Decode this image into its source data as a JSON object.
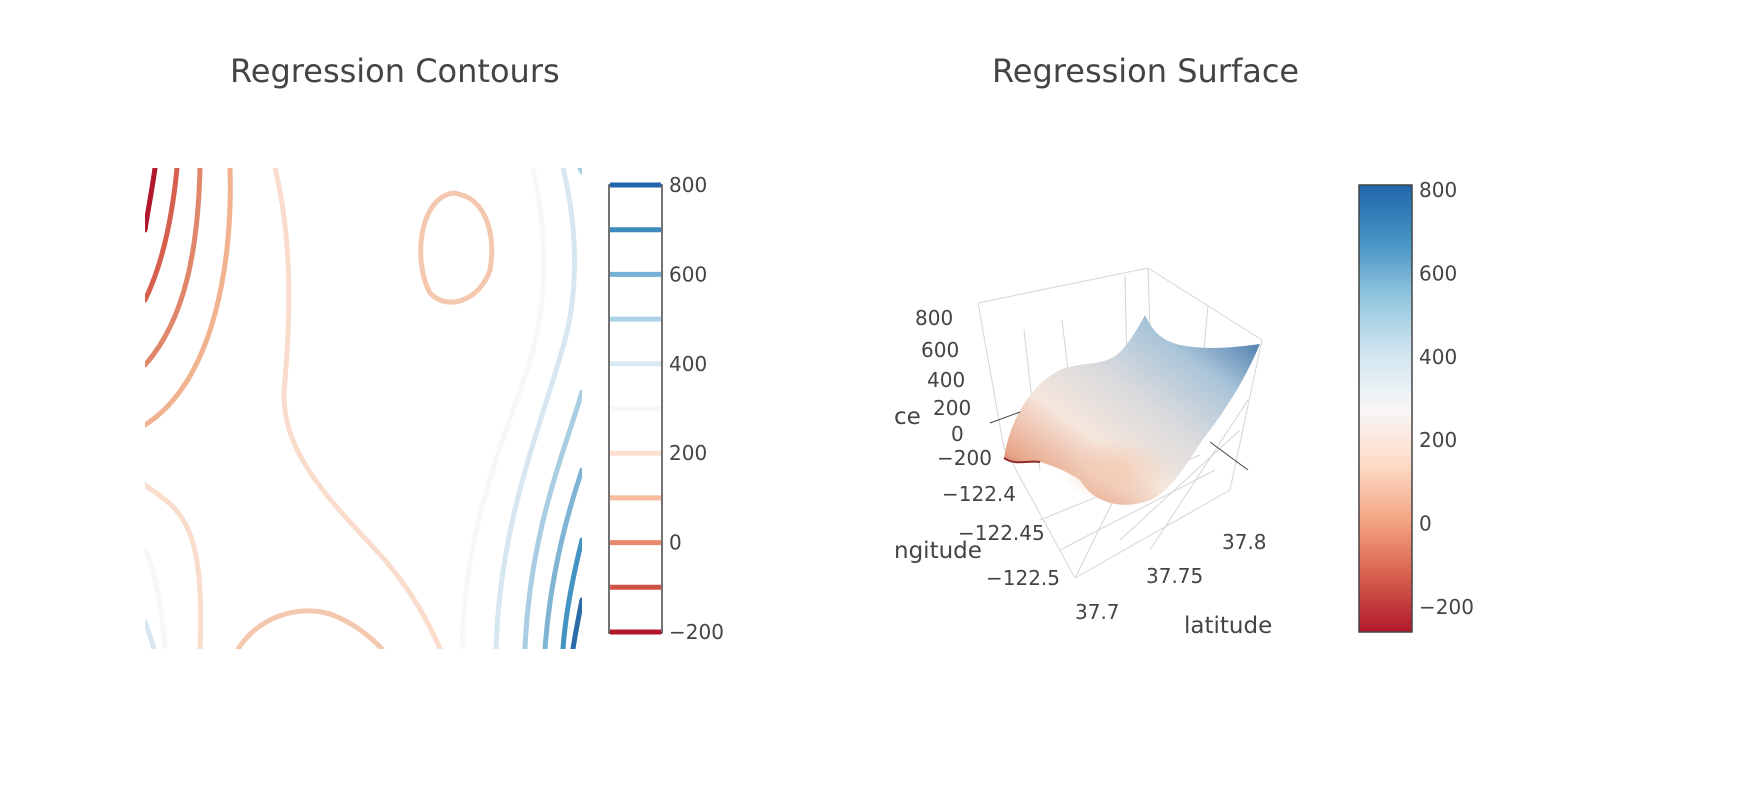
{
  "titles": {
    "left": "Regression Contours",
    "right": "Regression Surface"
  },
  "colors": {
    "text": "#444444",
    "scale": [
      "#b2182b",
      "#d6604d",
      "#f4a582",
      "#fddbc7",
      "#f7f7f7",
      "#d1e5f0",
      "#92c5de",
      "#4393c3",
      "#2166ac"
    ]
  },
  "chart_data": [
    {
      "type": "contour",
      "title": "Regression Contours",
      "colorscale": "RdBu",
      "zmin": -200,
      "zmax": 800,
      "contour_interval": 100,
      "colorbar": {
        "ticks": [
          800,
          600,
          400,
          200,
          0,
          -200
        ],
        "tick_labels": [
          "800",
          "600",
          "400",
          "200",
          "0",
          "−200"
        ]
      },
      "axes_visible": false
    },
    {
      "type": "surface",
      "title": "Regression Surface",
      "colorscale": "RdBu",
      "zmin": -200,
      "zmax": 800,
      "axes": {
        "x": {
          "title": "latitude",
          "ticks": [
            "37.7",
            "37.75",
            "37.8"
          ]
        },
        "y": {
          "title": "ngitude",
          "ticks": [
            "−122.4",
            "−122.45",
            "−122.5"
          ]
        },
        "z": {
          "title": "ce",
          "ticks": [
            "800",
            "600",
            "400",
            "200",
            "0",
            "−200"
          ]
        }
      },
      "colorbar": {
        "ticks": [
          800,
          600,
          400,
          200,
          0,
          -200
        ],
        "tick_labels": [
          "800",
          "600",
          "400",
          "200",
          "0",
          "−200"
        ]
      }
    }
  ]
}
